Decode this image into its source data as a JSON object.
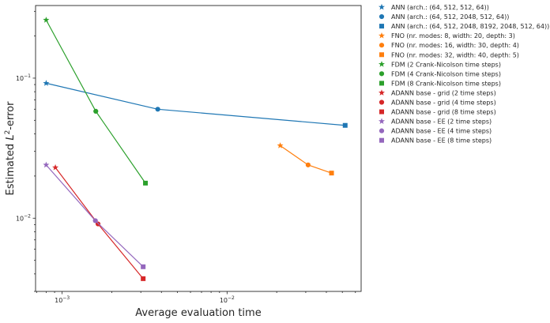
{
  "chart_data": {
    "type": "line",
    "xlabel": "Average evaluation time",
    "ylabel_prefix": "Estimated ",
    "ylabel_math": "L",
    "ylabel_sup": "2",
    "ylabel_suffix": "-error",
    "x_scale": "log",
    "y_scale": "log",
    "xlim": [
      0.00069,
      0.065
    ],
    "ylim": [
      0.003,
      0.33
    ],
    "grid": false,
    "legend_position": "outside-right-top",
    "x_ticks": [
      {
        "value": 0.001,
        "base": "10",
        "exp": "−3"
      },
      {
        "value": 0.01,
        "base": "10",
        "exp": "−2"
      }
    ],
    "y_ticks": [
      {
        "value": 0.01,
        "base": "10",
        "exp": "−2"
      },
      {
        "value": 0.1,
        "base": "10",
        "exp": "−1"
      }
    ],
    "marker_legend": [
      {
        "label": "2 time steps",
        "marker": "star"
      }
    ],
    "series": [
      {
        "group": "ANN",
        "color": "#1f77b4",
        "points": [
          {
            "x": 0.0008,
            "y": 0.092,
            "marker": "star"
          },
          {
            "x": 0.0038,
            "y": 0.06,
            "marker": "circle"
          },
          {
            "x": 0.052,
            "y": 0.046,
            "marker": "square"
          }
        ],
        "legend": [
          {
            "label": "ANN (arch.: (64, 512, 512, 64))",
            "marker": "star"
          },
          {
            "label": "ANN (arch.: (64, 512, 2048, 512, 64))",
            "marker": "circle"
          },
          {
            "label": "ANN (arch.: (64, 512, 2048, 8192, 2048, 512, 64))",
            "marker": "square"
          }
        ]
      },
      {
        "group": "FNO",
        "color": "#ff7f0e",
        "points": [
          {
            "x": 0.021,
            "y": 0.033,
            "marker": "star"
          },
          {
            "x": 0.031,
            "y": 0.024,
            "marker": "circle"
          },
          {
            "x": 0.043,
            "y": 0.021,
            "marker": "square"
          }
        ],
        "legend": [
          {
            "label": "FNO (nr. modes: 8, width: 20, depth: 3)",
            "marker": "star"
          },
          {
            "label": "FNO (nr. modes: 16, width: 30, depth: 4)",
            "marker": "circle"
          },
          {
            "label": "FNO (nr. modes: 32, width: 40, depth: 5)",
            "marker": "square"
          }
        ]
      },
      {
        "group": "FDM",
        "color": "#2ca02c",
        "points": [
          {
            "x": 0.0008,
            "y": 0.26,
            "marker": "star"
          },
          {
            "x": 0.0016,
            "y": 0.058,
            "marker": "circle"
          },
          {
            "x": 0.0032,
            "y": 0.0178,
            "marker": "square"
          }
        ],
        "legend": [
          {
            "label": "FDM (2 Crank-Nicolson time steps)",
            "marker": "star"
          },
          {
            "label": "FDM (4 Crank-Nicolson time steps)",
            "marker": "circle"
          },
          {
            "label": "FDM (8 Crank-Nicolson time steps)",
            "marker": "square"
          }
        ]
      },
      {
        "group": "ADANN base - grid",
        "color": "#d62728",
        "points": [
          {
            "x": 0.00091,
            "y": 0.023,
            "marker": "star"
          },
          {
            "x": 0.00165,
            "y": 0.0091,
            "marker": "circle"
          },
          {
            "x": 0.0031,
            "y": 0.0037,
            "marker": "square"
          }
        ],
        "legend": [
          {
            "label": "ADANN base - grid (2 time steps)",
            "marker": "star"
          },
          {
            "label": "ADANN base - grid (4 time steps)",
            "marker": "circle"
          },
          {
            "label": "ADANN base - grid (8 time steps)",
            "marker": "square"
          }
        ]
      },
      {
        "group": "ADANN base - EE",
        "color": "#9467bd",
        "points": [
          {
            "x": 0.0008,
            "y": 0.024,
            "marker": "star"
          },
          {
            "x": 0.00159,
            "y": 0.0096,
            "marker": "circle"
          },
          {
            "x": 0.0031,
            "y": 0.0045,
            "marker": "square"
          }
        ],
        "legend": [
          {
            "label": "ADANN base - EE (2 time steps)",
            "marker": "star"
          },
          {
            "label": "ADANN base - EE (4 time steps)",
            "marker": "circle"
          },
          {
            "label": "ADANN base - EE (8 time steps)",
            "marker": "square"
          }
        ]
      }
    ]
  }
}
